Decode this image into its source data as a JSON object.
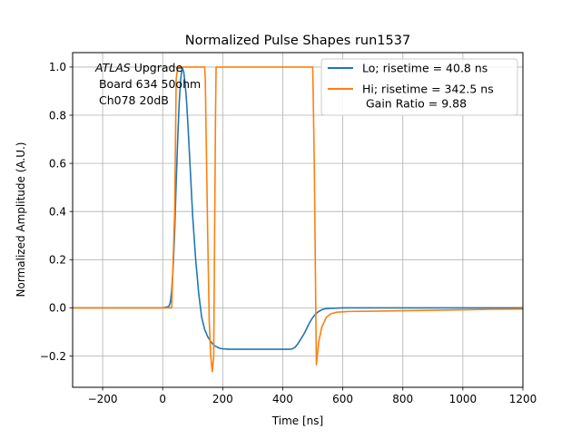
{
  "chart_data": {
    "type": "line",
    "title": "Normalized Pulse Shapes run1537",
    "xlabel": "Time [ns]",
    "ylabel": "Normalized Amplitude (A.U.)",
    "xlim": [
      -300,
      1200
    ],
    "ylim": [
      -0.33,
      1.06
    ],
    "xticks": [
      -200,
      0,
      200,
      400,
      600,
      800,
      1000,
      1200
    ],
    "yticks": [
      -0.2,
      0.0,
      0.2,
      0.4,
      0.6,
      0.8,
      1.0
    ],
    "xtick_labels": [
      "−200",
      "0",
      "200",
      "400",
      "600",
      "800",
      "1000",
      "1200"
    ],
    "ytick_labels": [
      "−0.2",
      "0.0",
      "0.2",
      "0.4",
      "0.6",
      "0.8",
      "1.0"
    ],
    "grid": true,
    "legend_position": "top-right",
    "annotation": {
      "italic": "ATLAS",
      "line1_rest": " Upgrade",
      "line2": " Board 634 50ohm",
      "line3": " Ch078 20dB"
    },
    "series": [
      {
        "name": "Lo; risetime = 40.8 ns",
        "color": "#1f77b4",
        "x": [
          -300,
          0,
          20,
          25,
          30,
          35,
          40,
          45,
          50,
          55,
          60,
          65,
          70,
          75,
          80,
          85,
          90,
          95,
          100,
          110,
          120,
          130,
          140,
          150,
          160,
          170,
          180,
          190,
          200,
          210,
          220,
          240,
          300,
          350,
          400,
          420,
          430,
          440,
          450,
          460,
          470,
          480,
          490,
          500,
          510,
          520,
          530,
          540,
          560,
          600,
          700,
          800,
          1000,
          1200
        ],
        "y": [
          0,
          0,
          0.005,
          0.02,
          0.07,
          0.17,
          0.32,
          0.52,
          0.7,
          0.85,
          0.95,
          1.0,
          0.98,
          0.93,
          0.85,
          0.74,
          0.62,
          0.5,
          0.38,
          0.2,
          0.06,
          -0.04,
          -0.09,
          -0.12,
          -0.14,
          -0.155,
          -0.162,
          -0.168,
          -0.17,
          -0.171,
          -0.172,
          -0.172,
          -0.172,
          -0.172,
          -0.172,
          -0.172,
          -0.171,
          -0.165,
          -0.15,
          -0.13,
          -0.11,
          -0.085,
          -0.06,
          -0.04,
          -0.025,
          -0.015,
          -0.008,
          -0.004,
          -0.002,
          0,
          0,
          0,
          0,
          0
        ]
      },
      {
        "name": "Hi; risetime = 342.5 ns\n Gain Ratio = 9.88",
        "color": "#ff7f0e",
        "x": [
          -300,
          0,
          20,
          30,
          40,
          45,
          50,
          140,
          142,
          145,
          150,
          155,
          160,
          165,
          170,
          173,
          176,
          178,
          180,
          500,
          505,
          510,
          512,
          515,
          520,
          530,
          545,
          560,
          580,
          620,
          700,
          800,
          900,
          1000,
          1100,
          1200
        ],
        "y": [
          0,
          0,
          0.0,
          0.0,
          0.4,
          0.95,
          1.0,
          1.0,
          0.95,
          0.7,
          0.3,
          -0.05,
          -0.2,
          -0.265,
          -0.2,
          0.3,
          0.8,
          1.0,
          1.0,
          1.0,
          0.6,
          0.0,
          -0.236,
          -0.2,
          -0.14,
          -0.08,
          -0.04,
          -0.025,
          -0.018,
          -0.015,
          -0.014,
          -0.012,
          -0.01,
          -0.008,
          -0.006,
          -0.005
        ]
      }
    ]
  }
}
